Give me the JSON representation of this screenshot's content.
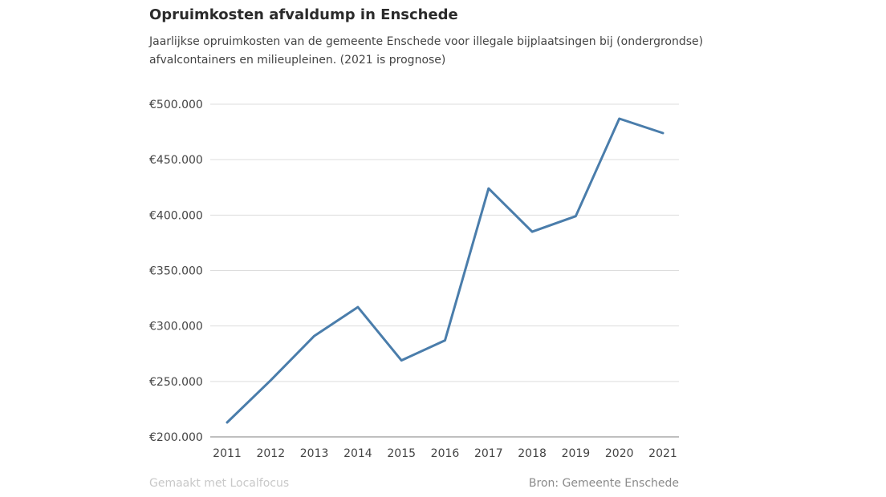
{
  "header": {
    "title": "Opruimkosten afvaldump in Enschede",
    "subtitle": "Jaarlijkse opruimkosten van de gemeente Enschede voor illegale bijplaatsingen bij (ondergrondse) afvalcontainers en milieupleinen. (2021 is prognose)"
  },
  "footer": {
    "credit": "Gemaakt met Localfocus",
    "source": "Bron:  Gemeente Enschede"
  },
  "colors": {
    "line": "#4a7dab",
    "grid": "#dddddd",
    "axis": "#999999"
  },
  "chart_data": {
    "type": "line",
    "title": "Opruimkosten afvaldump in Enschede",
    "xlabel": "",
    "ylabel": "",
    "categories": [
      "2011",
      "2012",
      "2013",
      "2014",
      "2015",
      "2016",
      "2017",
      "2018",
      "2019",
      "2020",
      "2021"
    ],
    "values": [
      213000,
      251000,
      291000,
      317000,
      269000,
      287000,
      424000,
      385000,
      399000,
      487000,
      474000
    ],
    "ylim": [
      200000,
      500000
    ],
    "yticks": [
      200000,
      250000,
      300000,
      350000,
      400000,
      450000,
      500000
    ],
    "ytick_labels": [
      "€200.000",
      "€250.000",
      "€300.000",
      "€350.000",
      "€400.000",
      "€450.000",
      "€500.000"
    ],
    "grid": true,
    "legend": "none"
  }
}
